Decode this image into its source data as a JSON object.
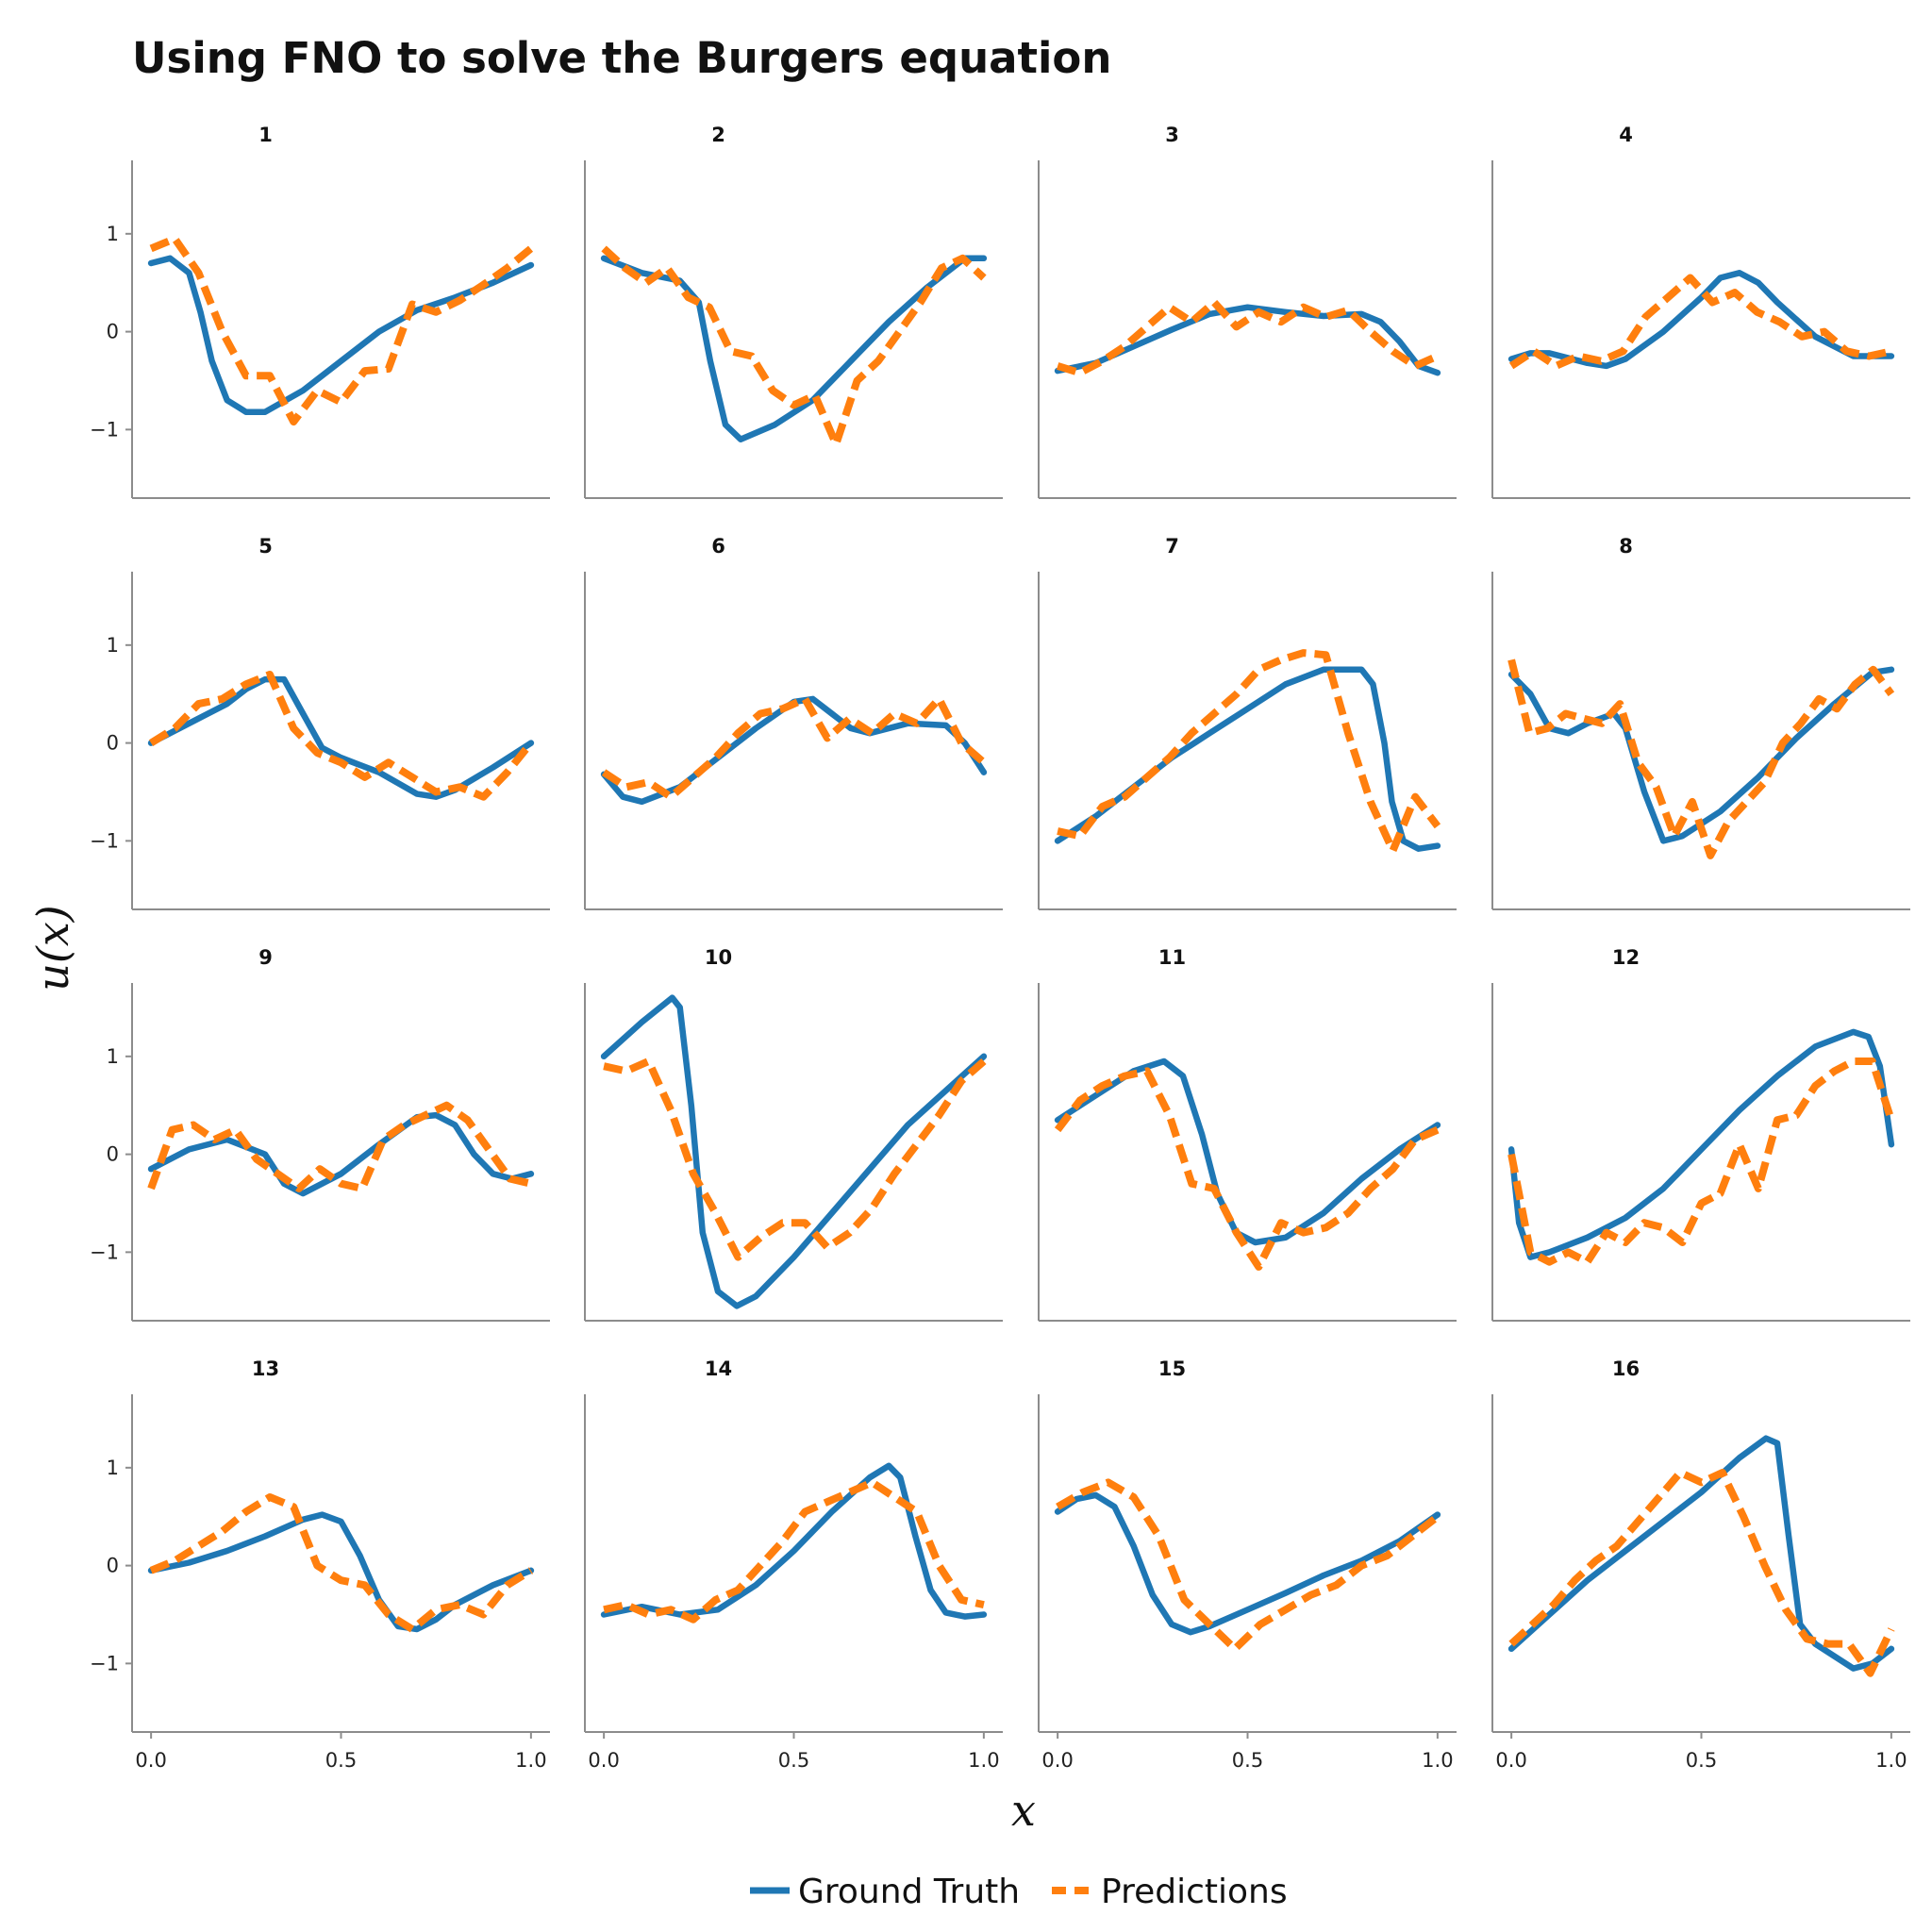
{
  "colors": {
    "ground_truth": "#1f77b4",
    "predictions": "#ff7f0e",
    "axis": "#8c8c8c"
  },
  "chart_data": {
    "type": "line",
    "title": "Using FNO to solve the Burgers equation",
    "xlabel": "x",
    "ylabel": "u(x)",
    "xlim": [
      -0.05,
      1.05
    ],
    "ylim": [
      -1.7,
      1.75
    ],
    "xticks": [
      0.0,
      0.5,
      1.0
    ],
    "xtick_labels": [
      "0.0",
      "0.5",
      "1.0"
    ],
    "yticks": [
      1,
      0,
      -1
    ],
    "ytick_labels": [
      "1",
      "0",
      "−1"
    ],
    "legend": {
      "placement": "bottom-center",
      "entries": [
        "Ground Truth",
        "Predictions"
      ]
    },
    "panels": [
      {
        "title": "1",
        "x": [
          0,
          0.05,
          0.1,
          0.13,
          0.16,
          0.2,
          0.25,
          0.3,
          0.4,
          0.5,
          0.6,
          0.7,
          0.8,
          0.9,
          1.0
        ],
        "truth": [
          0.7,
          0.75,
          0.6,
          0.2,
          -0.3,
          -0.7,
          -0.82,
          -0.82,
          -0.6,
          -0.3,
          0.0,
          0.22,
          0.35,
          0.5,
          0.68
        ],
        "pred": [
          0.85,
          0.95,
          0.6,
          0.0,
          -0.45,
          -0.45,
          -0.92,
          -0.6,
          -0.72,
          -0.4,
          -0.38,
          0.28,
          0.2,
          0.32,
          0.48,
          0.65,
          0.85
        ]
      },
      {
        "title": "2",
        "x": [
          0,
          0.1,
          0.2,
          0.25,
          0.28,
          0.32,
          0.36,
          0.45,
          0.55,
          0.65,
          0.75,
          0.85,
          0.95,
          1.0
        ],
        "truth": [
          0.75,
          0.6,
          0.52,
          0.3,
          -0.3,
          -0.95,
          -1.1,
          -0.95,
          -0.7,
          -0.3,
          0.1,
          0.45,
          0.75,
          0.75
        ],
        "pred": [
          0.85,
          0.65,
          0.5,
          0.65,
          0.35,
          0.25,
          -0.2,
          -0.25,
          -0.6,
          -0.75,
          -0.65,
          -1.15,
          -0.5,
          -0.3,
          0.0,
          0.3,
          0.65,
          0.75,
          0.55
        ]
      },
      {
        "title": "3",
        "x": [
          0,
          0.1,
          0.2,
          0.3,
          0.4,
          0.5,
          0.6,
          0.7,
          0.8,
          0.85,
          0.9,
          0.95,
          1.0
        ],
        "truth": [
          -0.4,
          -0.32,
          -0.15,
          0.02,
          0.18,
          0.25,
          0.2,
          0.16,
          0.18,
          0.1,
          -0.1,
          -0.35,
          -0.42
        ],
        "pred": [
          -0.35,
          -0.42,
          -0.3,
          -0.15,
          0.05,
          0.25,
          0.1,
          0.3,
          0.05,
          0.2,
          0.1,
          0.25,
          0.15,
          0.22,
          0.0,
          -0.2,
          -0.35,
          -0.25
        ]
      },
      {
        "title": "4",
        "x": [
          0,
          0.05,
          0.1,
          0.2,
          0.25,
          0.3,
          0.4,
          0.5,
          0.55,
          0.6,
          0.65,
          0.7,
          0.8,
          0.9,
          1.0
        ],
        "truth": [
          -0.28,
          -0.22,
          -0.22,
          -0.32,
          -0.35,
          -0.28,
          0.0,
          0.35,
          0.55,
          0.6,
          0.5,
          0.3,
          -0.05,
          -0.25,
          -0.25
        ],
        "pred": [
          -0.35,
          -0.2,
          -0.35,
          -0.25,
          -0.3,
          -0.2,
          0.15,
          0.35,
          0.55,
          0.3,
          0.4,
          0.2,
          0.1,
          -0.05,
          0.0,
          -0.2,
          -0.25,
          -0.2
        ]
      },
      {
        "title": "5",
        "x": [
          0,
          0.1,
          0.2,
          0.25,
          0.3,
          0.35,
          0.4,
          0.45,
          0.5,
          0.6,
          0.7,
          0.75,
          0.8,
          0.9,
          1.0
        ],
        "truth": [
          0.0,
          0.2,
          0.4,
          0.55,
          0.65,
          0.65,
          0.3,
          -0.05,
          -0.15,
          -0.3,
          -0.52,
          -0.55,
          -0.48,
          -0.25,
          0.0
        ],
        "pred": [
          0.0,
          0.15,
          0.4,
          0.45,
          0.6,
          0.7,
          0.15,
          -0.1,
          -0.2,
          -0.35,
          -0.2,
          -0.35,
          -0.5,
          -0.45,
          -0.55,
          -0.3,
          0.0
        ]
      },
      {
        "title": "6",
        "x": [
          0,
          0.05,
          0.1,
          0.2,
          0.3,
          0.4,
          0.5,
          0.55,
          0.6,
          0.65,
          0.7,
          0.8,
          0.9,
          0.95,
          1.0
        ],
        "truth": [
          -0.32,
          -0.55,
          -0.6,
          -0.45,
          -0.15,
          0.15,
          0.42,
          0.45,
          0.3,
          0.15,
          0.1,
          0.2,
          0.18,
          0.0,
          -0.3
        ],
        "pred": [
          -0.3,
          -0.45,
          -0.4,
          -0.55,
          -0.35,
          -0.15,
          0.1,
          0.3,
          0.35,
          0.45,
          0.05,
          0.25,
          0.1,
          0.3,
          0.2,
          0.45,
          0.0,
          -0.2
        ]
      },
      {
        "title": "7",
        "x": [
          0,
          0.1,
          0.2,
          0.3,
          0.4,
          0.5,
          0.6,
          0.7,
          0.8,
          0.83,
          0.86,
          0.88,
          0.91,
          0.95,
          1.0
        ],
        "truth": [
          -1.0,
          -0.75,
          -0.45,
          -0.15,
          0.1,
          0.35,
          0.6,
          0.75,
          0.75,
          0.6,
          0.0,
          -0.6,
          -1.0,
          -1.08,
          -1.05
        ],
        "pred": [
          -0.9,
          -0.95,
          -0.65,
          -0.55,
          -0.35,
          -0.15,
          0.1,
          0.3,
          0.5,
          0.75,
          0.85,
          0.92,
          0.9,
          0.1,
          -0.6,
          -1.1,
          -0.55,
          -0.85
        ]
      },
      {
        "title": "8",
        "x": [
          0,
          0.05,
          0.1,
          0.15,
          0.2,
          0.27,
          0.3,
          0.35,
          0.4,
          0.45,
          0.55,
          0.65,
          0.75,
          0.85,
          0.95,
          1.0
        ],
        "truth": [
          0.7,
          0.5,
          0.15,
          0.1,
          0.2,
          0.3,
          0.15,
          -0.5,
          -1.0,
          -0.95,
          -0.7,
          -0.35,
          0.05,
          0.4,
          0.72,
          0.75
        ],
        "pred": [
          0.85,
          0.1,
          0.15,
          0.3,
          0.25,
          0.2,
          0.4,
          -0.2,
          -0.45,
          -0.95,
          -0.6,
          -1.15,
          -0.8,
          -0.6,
          -0.4,
          0.0,
          0.2,
          0.45,
          0.35,
          0.6,
          0.75,
          0.5
        ]
      },
      {
        "title": "9",
        "x": [
          0,
          0.1,
          0.2,
          0.3,
          0.35,
          0.4,
          0.5,
          0.6,
          0.7,
          0.75,
          0.8,
          0.85,
          0.9,
          0.95,
          1.0
        ],
        "truth": [
          -0.15,
          0.05,
          0.15,
          0.0,
          -0.3,
          -0.4,
          -0.2,
          0.1,
          0.38,
          0.4,
          0.3,
          0.0,
          -0.2,
          -0.25,
          -0.2
        ],
        "pred": [
          -0.35,
          0.25,
          0.3,
          0.15,
          0.25,
          -0.05,
          -0.2,
          -0.35,
          -0.15,
          -0.3,
          -0.35,
          0.15,
          0.3,
          0.4,
          0.5,
          0.35,
          0.05,
          -0.25,
          -0.3
        ]
      },
      {
        "title": "10",
        "x": [
          0,
          0.1,
          0.18,
          0.2,
          0.23,
          0.26,
          0.3,
          0.35,
          0.4,
          0.5,
          0.6,
          0.7,
          0.8,
          0.9,
          1.0
        ],
        "truth": [
          1.0,
          1.35,
          1.6,
          1.5,
          0.5,
          -0.8,
          -1.4,
          -1.55,
          -1.45,
          -1.05,
          -0.6,
          -0.15,
          0.3,
          0.65,
          1.0
        ],
        "pred": [
          0.9,
          0.85,
          0.95,
          0.45,
          -0.2,
          -0.6,
          -1.05,
          -0.85,
          -0.7,
          -0.7,
          -0.95,
          -0.8,
          -0.55,
          -0.2,
          0.1,
          0.4,
          0.75,
          0.95
        ]
      },
      {
        "title": "11",
        "x": [
          0,
          0.1,
          0.2,
          0.28,
          0.33,
          0.38,
          0.42,
          0.47,
          0.52,
          0.6,
          0.7,
          0.8,
          0.9,
          1.0
        ],
        "truth": [
          0.35,
          0.6,
          0.85,
          0.95,
          0.8,
          0.2,
          -0.4,
          -0.8,
          -0.9,
          -0.85,
          -0.6,
          -0.25,
          0.05,
          0.3
        ],
        "pred": [
          0.25,
          0.55,
          0.7,
          0.8,
          0.85,
          0.4,
          -0.3,
          -0.35,
          -0.8,
          -1.15,
          -0.7,
          -0.8,
          -0.75,
          -0.6,
          -0.35,
          -0.15,
          0.15,
          0.25
        ]
      },
      {
        "title": "12",
        "x": [
          0,
          0.02,
          0.05,
          0.1,
          0.2,
          0.3,
          0.4,
          0.5,
          0.6,
          0.7,
          0.8,
          0.9,
          0.94,
          0.97,
          1.0
        ],
        "truth": [
          0.05,
          -0.7,
          -1.05,
          -1.0,
          -0.85,
          -0.65,
          -0.35,
          0.05,
          0.45,
          0.8,
          1.1,
          1.25,
          1.2,
          0.9,
          0.1
        ],
        "pred": [
          0.0,
          -1.0,
          -1.1,
          -1.0,
          -1.1,
          -0.8,
          -0.9,
          -0.7,
          -0.75,
          -0.9,
          -0.5,
          -0.4,
          0.1,
          -0.35,
          0.35,
          0.4,
          0.7,
          0.85,
          0.95,
          0.95,
          0.35
        ]
      },
      {
        "title": "13",
        "x": [
          0,
          0.1,
          0.2,
          0.3,
          0.4,
          0.45,
          0.5,
          0.55,
          0.6,
          0.65,
          0.7,
          0.75,
          0.8,
          0.9,
          1.0
        ],
        "truth": [
          -0.05,
          0.03,
          0.15,
          0.3,
          0.47,
          0.52,
          0.45,
          0.1,
          -0.35,
          -0.62,
          -0.65,
          -0.55,
          -0.4,
          -0.2,
          -0.05
        ],
        "pred": [
          -0.05,
          0.05,
          0.2,
          0.35,
          0.55,
          0.7,
          0.6,
          0.0,
          -0.15,
          -0.2,
          -0.5,
          -0.65,
          -0.45,
          -0.4,
          -0.5,
          -0.2,
          -0.05
        ]
      },
      {
        "title": "14",
        "x": [
          0,
          0.1,
          0.2,
          0.3,
          0.4,
          0.5,
          0.6,
          0.7,
          0.75,
          0.78,
          0.82,
          0.86,
          0.9,
          0.95,
          1.0
        ],
        "truth": [
          -0.5,
          -0.42,
          -0.5,
          -0.45,
          -0.2,
          0.15,
          0.55,
          0.9,
          1.02,
          0.9,
          0.3,
          -0.25,
          -0.48,
          -0.52,
          -0.5
        ],
        "pred": [
          -0.45,
          -0.4,
          -0.5,
          -0.45,
          -0.55,
          -0.35,
          -0.25,
          0.0,
          0.25,
          0.55,
          0.65,
          0.75,
          0.85,
          0.7,
          0.55,
          0.0,
          -0.35,
          -0.4
        ]
      },
      {
        "title": "15",
        "x": [
          0,
          0.05,
          0.1,
          0.15,
          0.2,
          0.25,
          0.3,
          0.35,
          0.4,
          0.5,
          0.6,
          0.7,
          0.8,
          0.9,
          1.0
        ],
        "truth": [
          0.55,
          0.68,
          0.72,
          0.6,
          0.2,
          -0.3,
          -0.6,
          -0.68,
          -0.62,
          -0.45,
          -0.28,
          -0.1,
          0.05,
          0.25,
          0.52
        ],
        "pred": [
          0.6,
          0.75,
          0.85,
          0.7,
          0.3,
          -0.35,
          -0.6,
          -0.85,
          -0.6,
          -0.45,
          -0.3,
          -0.2,
          0.0,
          0.1,
          0.3,
          0.5
        ]
      },
      {
        "title": "16",
        "x": [
          0,
          0.1,
          0.2,
          0.3,
          0.4,
          0.5,
          0.6,
          0.67,
          0.7,
          0.73,
          0.76,
          0.8,
          0.9,
          0.95,
          1.0
        ],
        "truth": [
          -0.85,
          -0.5,
          -0.15,
          0.15,
          0.45,
          0.75,
          1.1,
          1.3,
          1.25,
          0.3,
          -0.6,
          -0.8,
          -1.05,
          -1.0,
          -0.85
        ],
        "pred": [
          -0.8,
          -0.6,
          -0.4,
          -0.15,
          0.05,
          0.2,
          0.45,
          0.7,
          0.95,
          0.85,
          0.95,
          0.5,
          0.0,
          -0.45,
          -0.75,
          -0.8,
          -0.8,
          -1.1,
          -0.65
        ]
      }
    ]
  }
}
